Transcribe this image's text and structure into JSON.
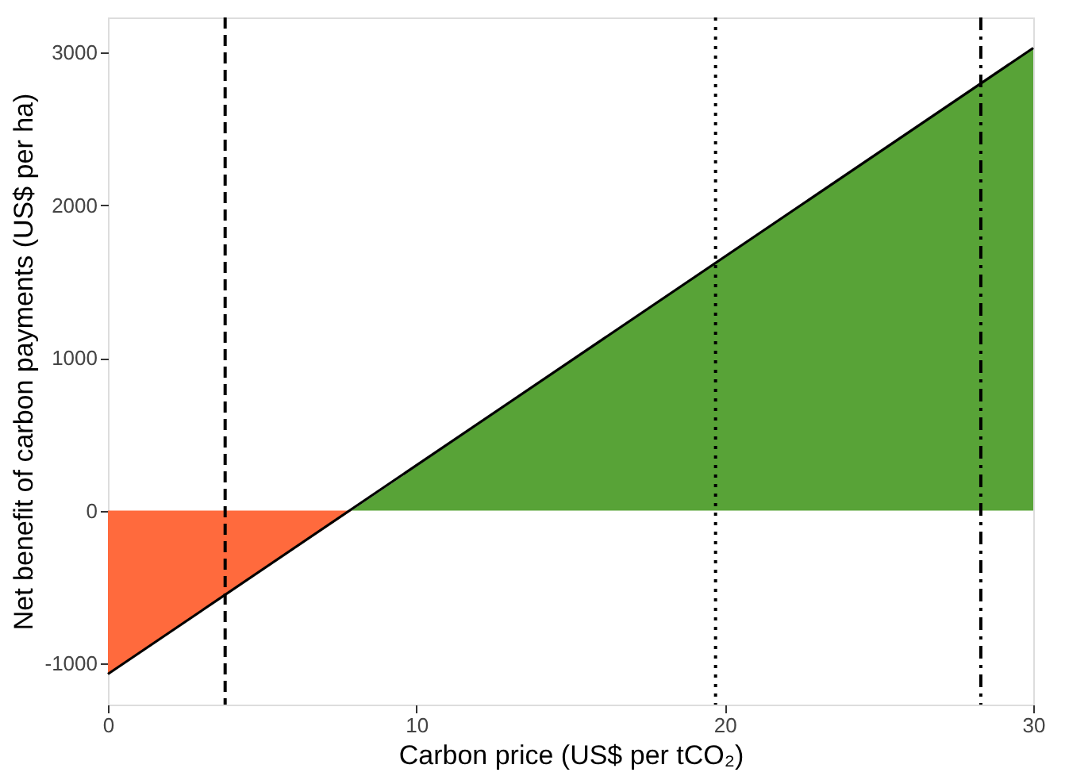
{
  "chart_data": {
    "type": "area",
    "xlabel": "Carbon price (US$ per tCO₂)",
    "ylabel": "Net benefit of carbon payments (US$ per ha)",
    "xlim": [
      0,
      30
    ],
    "xticks": [
      0,
      10,
      20,
      30
    ],
    "ylim": [
      -1270,
      3230
    ],
    "yticks": [
      -1000,
      0,
      1000,
      2000,
      3000
    ],
    "grid": false,
    "legend": false,
    "series": [
      {
        "color": "#ff6a3d",
        "x": [
          0,
          7.9
        ],
        "values": [
          -1070,
          0
        ]
      },
      {
        "color": "#58a337",
        "x": [
          7.9,
          30
        ],
        "values": [
          0,
          3030
        ]
      },
      {
        "type": "line",
        "color": "#000000",
        "x": [
          0,
          30
        ],
        "values": [
          -1070,
          3030
        ]
      }
    ],
    "ref_lines": [
      {
        "axis": "x",
        "value": 3.8,
        "line_style": "dashed",
        "color": "#000000"
      },
      {
        "axis": "x",
        "value": 19.7,
        "line_style": "dotted",
        "color": "#000000"
      },
      {
        "axis": "x",
        "value": 28.3,
        "line_style": "dashdot",
        "color": "#000000"
      }
    ]
  }
}
